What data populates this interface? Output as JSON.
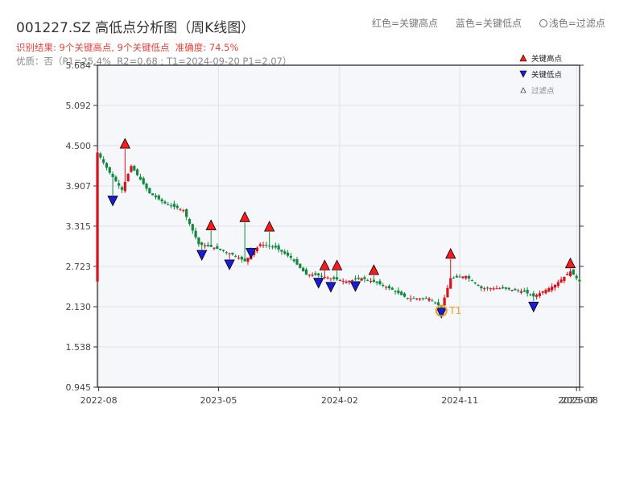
{
  "header": {
    "title": "001227.SZ 高低点分析图（周K线图）",
    "legend_red": "红色=关键高点",
    "legend_blue": "蓝色=关键低点",
    "legend_light": "浅色=过滤点",
    "result_prefix": "识别结果: ",
    "result_high": "9个关键高点",
    "result_sep": ", ",
    "result_low": "9个关键低点",
    "result_accuracy": "  准确度: 74.5%",
    "quality": "优质：否（P1=25.4%  R2=0.68 ; T1=2024-09-20 P1=2.07）"
  },
  "colors": {
    "up": "#d9121c",
    "down": "#0f8a3a",
    "high_marker": "#ff1a1a",
    "low_marker": "#1a1adb",
    "t1": "#f2a023",
    "plot_bg": "#f5f7fa",
    "grid": "#dde2e8"
  },
  "chart_data": {
    "type": "candlestick",
    "x_range": [
      "2022-07-29",
      "2025-08-01"
    ],
    "y_range": [
      0.945,
      5.684
    ],
    "y_ticks": [
      "0.945",
      "1.538",
      "2.130",
      "2.723",
      "3.315",
      "3.907",
      "4.500",
      "5.092",
      "5.684"
    ],
    "x_ticks": [
      {
        "date": "2022-08-01",
        "label": "2022-08"
      },
      {
        "date": "2023-05-01",
        "label": "2023-05"
      },
      {
        "date": "2024-02-01",
        "label": "2024-02"
      },
      {
        "date": "2024-11-01",
        "label": "2024-11"
      },
      {
        "date": "2025-07-25",
        "label": "2025-07"
      },
      {
        "date": "2025-08-01",
        "label": "2025-08"
      }
    ],
    "grid": true,
    "legend_position": "top-right",
    "legend": [
      {
        "symbol": "triangle-up",
        "label": "关键高点"
      },
      {
        "symbol": "triangle-down",
        "label": "关键低点"
      },
      {
        "symbol": "triangle-up-small",
        "label": "过滤点"
      }
    ],
    "series": [
      {
        "name": "price",
        "anchors": [
          [
            "2022-07-29",
            4.4
          ],
          [
            "2022-08-26",
            4.1
          ],
          [
            "2022-09-23",
            3.85
          ],
          [
            "2022-10-14",
            4.2
          ],
          [
            "2022-11-25",
            3.8
          ],
          [
            "2022-12-30",
            3.65
          ],
          [
            "2023-02-10",
            3.55
          ],
          [
            "2023-03-17",
            3.05
          ],
          [
            "2023-04-21",
            3.0
          ],
          [
            "2023-06-02",
            2.9
          ],
          [
            "2023-06-30",
            2.8
          ],
          [
            "2023-08-04",
            3.05
          ],
          [
            "2023-09-08",
            3.0
          ],
          [
            "2023-10-13",
            2.85
          ],
          [
            "2023-11-17",
            2.6
          ],
          [
            "2023-12-08",
            2.6
          ],
          [
            "2024-01-12",
            2.55
          ],
          [
            "2024-02-16",
            2.5
          ],
          [
            "2024-03-22",
            2.55
          ],
          [
            "2024-04-26",
            2.48
          ],
          [
            "2024-05-31",
            2.38
          ],
          [
            "2024-07-05",
            2.25
          ],
          [
            "2024-08-23",
            2.25
          ],
          [
            "2024-09-20",
            2.12
          ],
          [
            "2024-10-11",
            2.55
          ],
          [
            "2024-11-15",
            2.58
          ],
          [
            "2024-12-20",
            2.4
          ],
          [
            "2025-02-07",
            2.4
          ],
          [
            "2025-03-28",
            2.35
          ],
          [
            "2025-04-18",
            2.28
          ],
          [
            "2025-06-06",
            2.45
          ],
          [
            "2025-07-11",
            2.65
          ],
          [
            "2025-08-01",
            2.5
          ]
        ]
      }
    ],
    "key_highs": [
      {
        "date": "2022-09-30",
        "value": 4.45
      },
      {
        "date": "2023-04-14",
        "value": 3.25
      },
      {
        "date": "2023-06-30",
        "value": 3.37
      },
      {
        "date": "2023-08-25",
        "value": 3.23
      },
      {
        "date": "2023-12-29",
        "value": 2.66
      },
      {
        "date": "2024-01-26",
        "value": 2.66
      },
      {
        "date": "2024-04-19",
        "value": 2.59
      },
      {
        "date": "2024-10-11",
        "value": 2.83
      },
      {
        "date": "2025-07-11",
        "value": 2.69
      }
    ],
    "key_lows": [
      {
        "date": "2022-09-02",
        "value": 3.77
      },
      {
        "date": "2023-03-24",
        "value": 2.97
      },
      {
        "date": "2023-05-26",
        "value": 2.83
      },
      {
        "date": "2023-07-14",
        "value": 3.0
      },
      {
        "date": "2023-12-15",
        "value": 2.56
      },
      {
        "date": "2024-01-12",
        "value": 2.5
      },
      {
        "date": "2024-03-08",
        "value": 2.51
      },
      {
        "date": "2024-09-20",
        "value": 2.12
      },
      {
        "date": "2025-04-18",
        "value": 2.21
      }
    ],
    "annotations": [
      {
        "label": "T1",
        "date": "2024-09-20",
        "value": 2.07
      }
    ]
  }
}
